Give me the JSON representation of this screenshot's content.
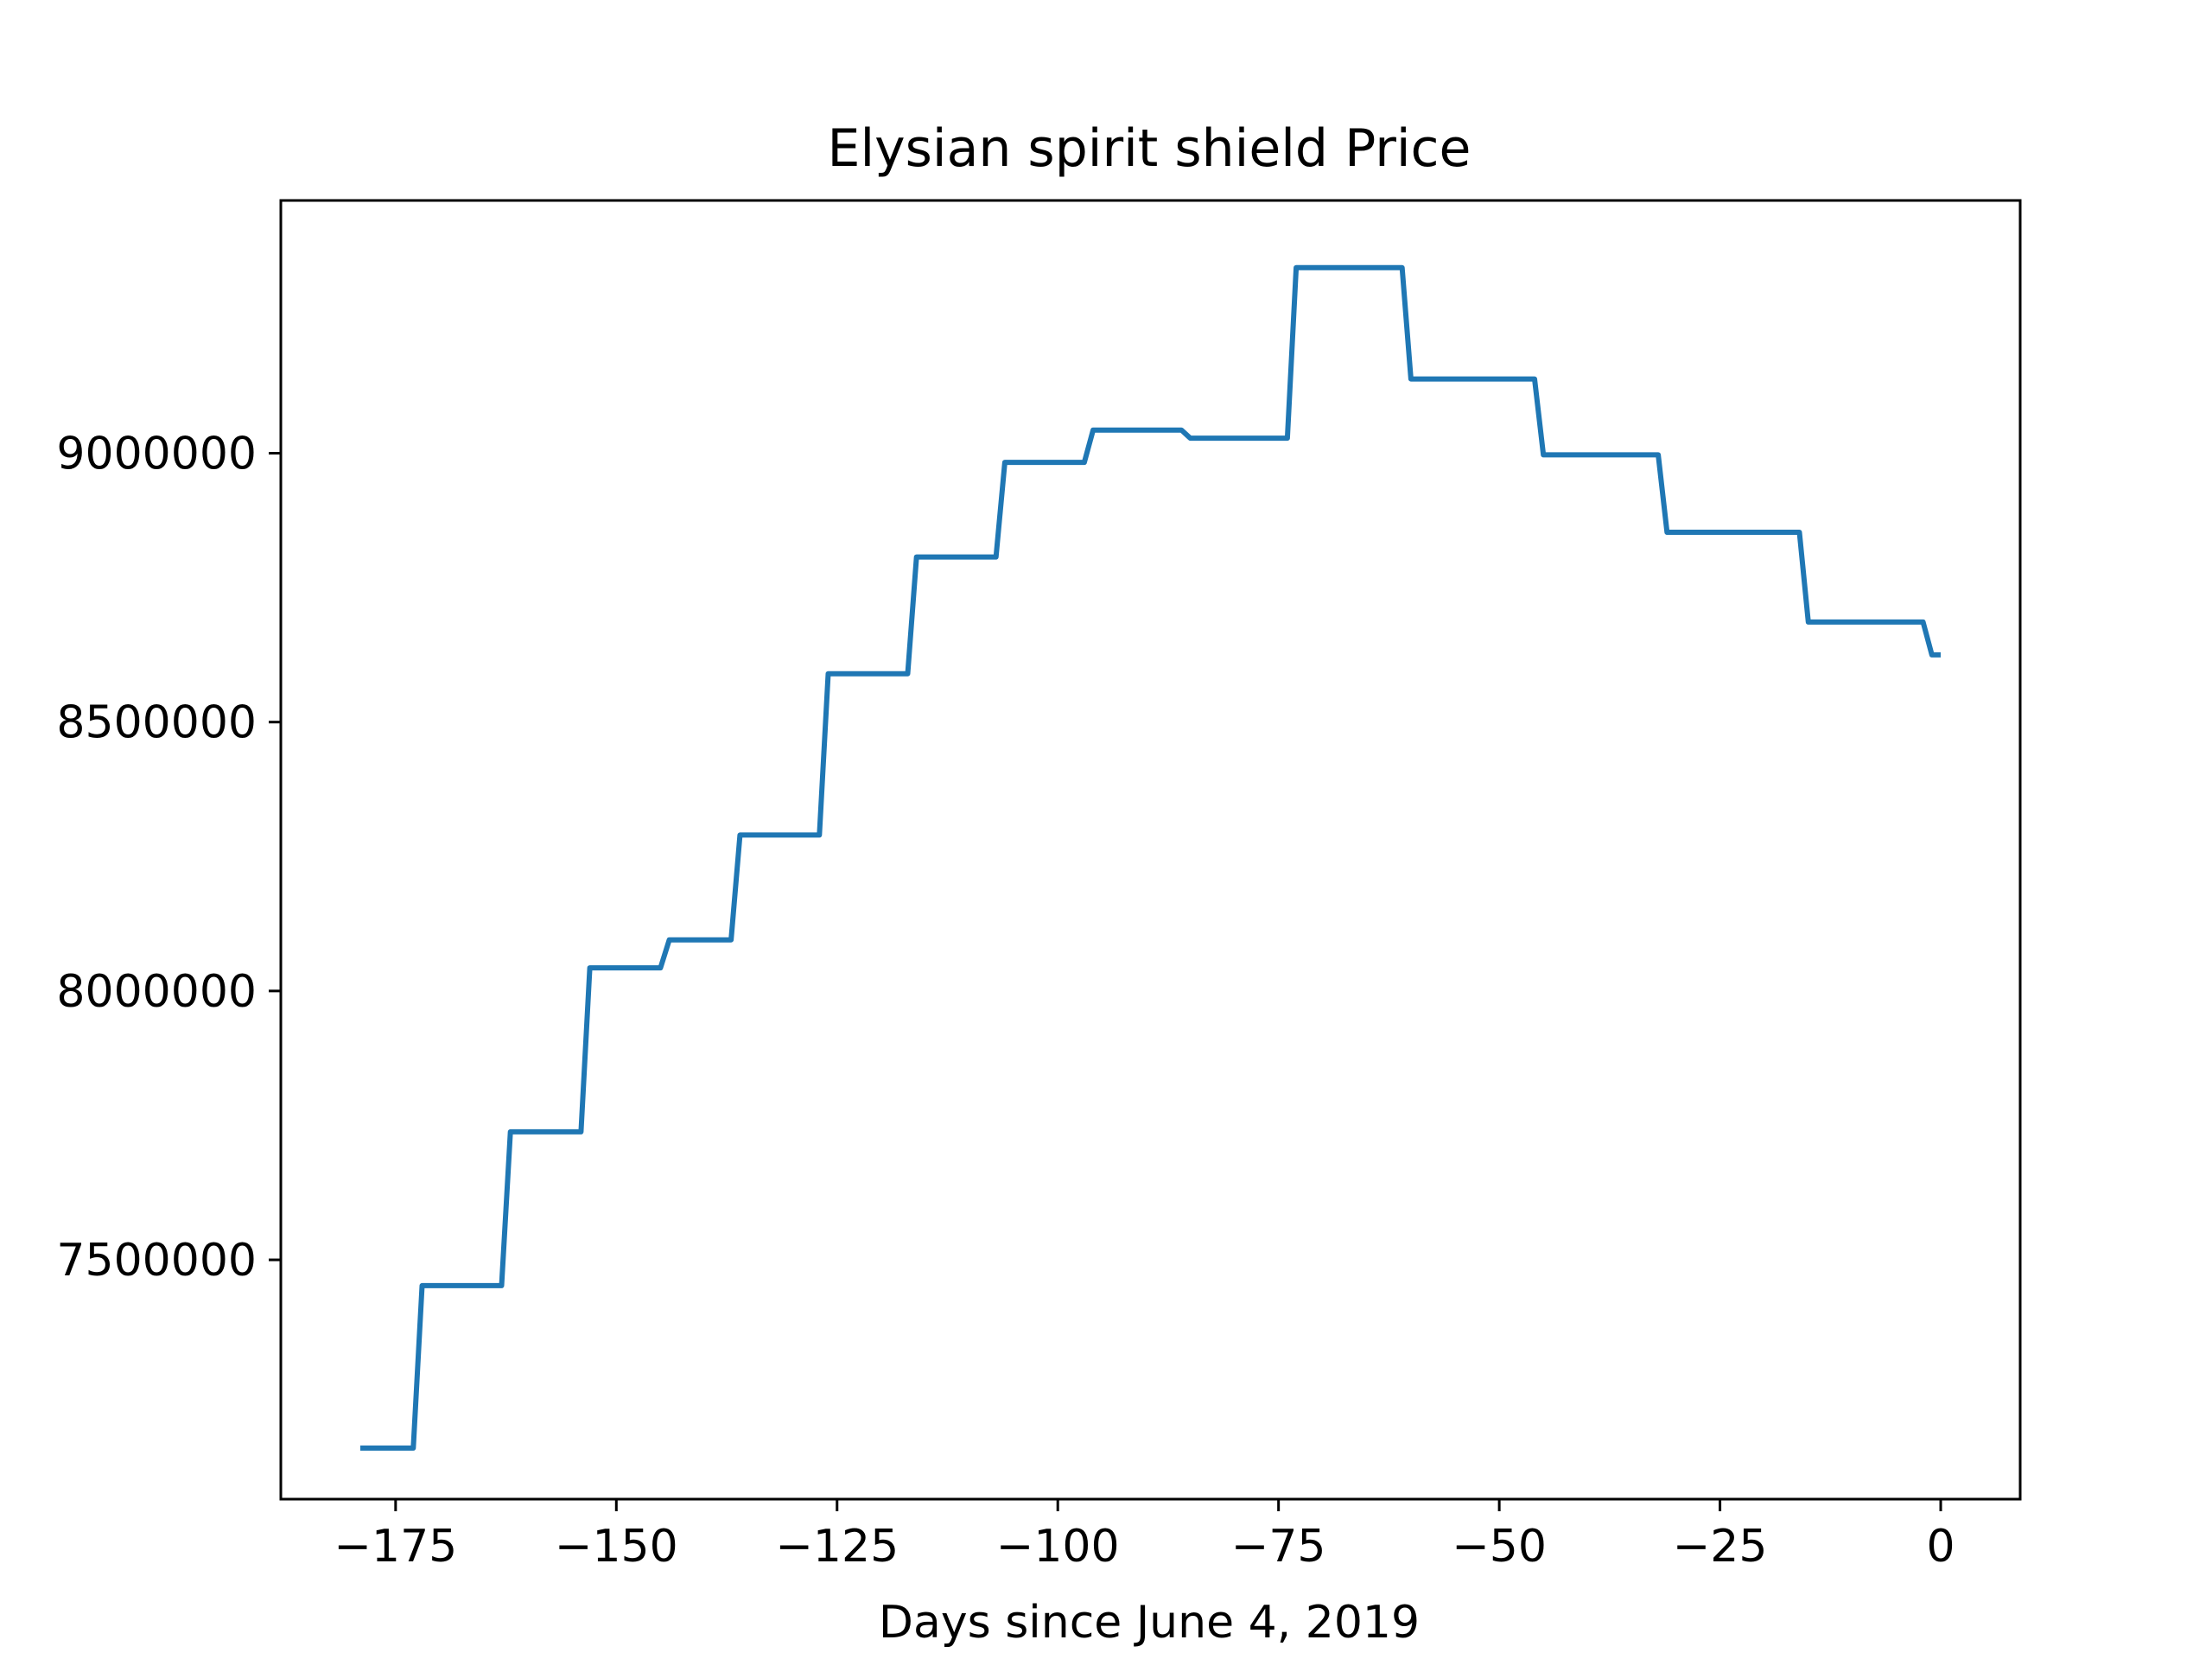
{
  "chart_data": {
    "type": "line",
    "title": "Elysian spirit shield Price",
    "xlabel": "Days since June 4, 2019",
    "ylabel": "",
    "xlim": [
      -188,
      9
    ],
    "ylim": [
      7055000,
      9470000
    ],
    "xticks": [
      -175,
      -150,
      -125,
      -100,
      -75,
      -50,
      -25,
      0
    ],
    "xtick_labels": [
      "−175",
      "−150",
      "−125",
      "−100",
      "−75",
      "−50",
      "−25",
      "0"
    ],
    "yticks": [
      7500000,
      8000000,
      8500000,
      9000000
    ],
    "ytick_labels": [
      "7500000",
      "8000000",
      "8500000",
      "9000000"
    ],
    "grid": false,
    "series": [
      {
        "name": "",
        "color": "#1f77b4",
        "x": [
          -179,
          -173,
          -172,
          -163,
          -162,
          -154,
          -153,
          -145,
          -144,
          -137,
          -136,
          -127,
          -126,
          -117,
          -116,
          -107,
          -106,
          -97,
          -96,
          -86,
          -85,
          -74,
          -73,
          -61,
          -60,
          -46,
          -45,
          -32,
          -31,
          -16,
          -15,
          -2,
          -1,
          0
        ],
        "y": [
          7150000,
          7150000,
          7452000,
          7452000,
          7738000,
          7738000,
          8043000,
          8043000,
          8095000,
          8095000,
          8290000,
          8290000,
          8590000,
          8590000,
          8807000,
          8807000,
          8983000,
          8983000,
          9043000,
          9043000,
          9028000,
          9028000,
          9345000,
          9345000,
          9138000,
          9138000,
          8997000,
          8997000,
          8853000,
          8853000,
          8686000,
          8686000,
          8625000,
          8625000
        ]
      }
    ]
  }
}
